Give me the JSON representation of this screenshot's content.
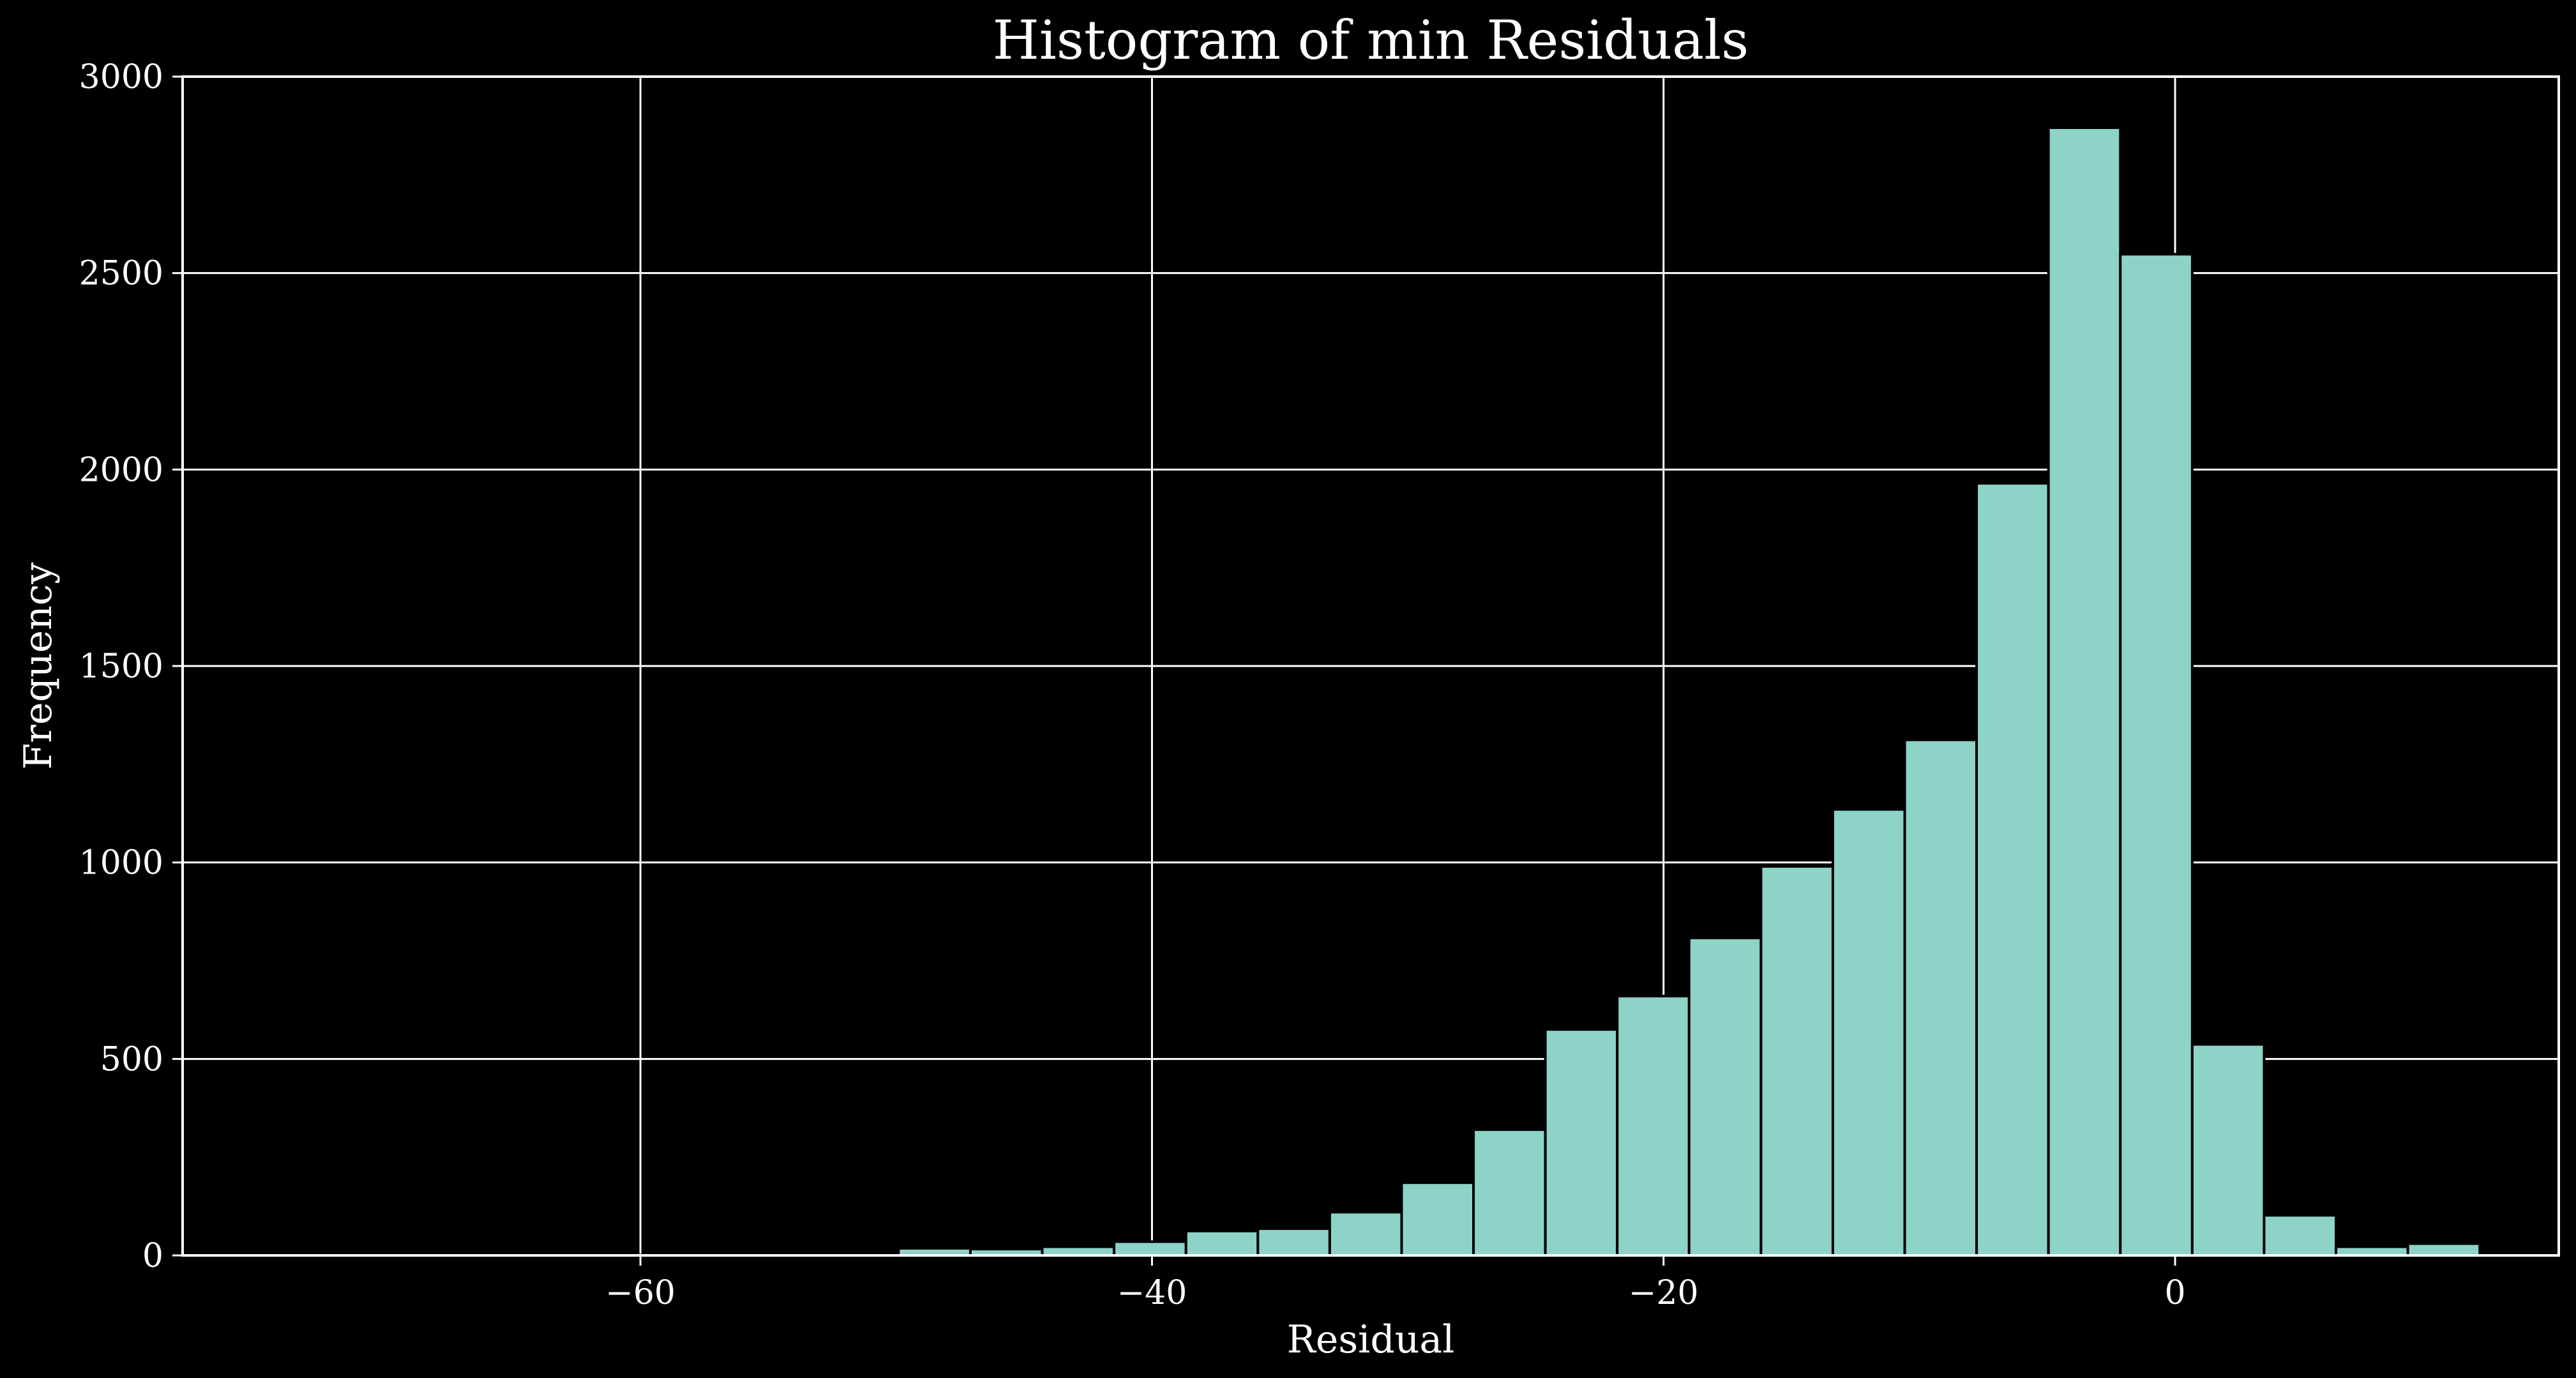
{
  "chart_data": {
    "type": "bar",
    "title": "Histogram of min Residuals",
    "xlabel": "Residual",
    "ylabel": "Frequency",
    "xlim": [
      -77.9,
      15.0
    ],
    "ylim": [
      0,
      3000
    ],
    "grid": true,
    "x_ticks": [
      {
        "value": -60,
        "label": "−60"
      },
      {
        "value": -40,
        "label": "−40"
      },
      {
        "value": -20,
        "label": "−20"
      },
      {
        "value": 0,
        "label": "0"
      }
    ],
    "y_ticks": [
      {
        "value": 0,
        "label": "0"
      },
      {
        "value": 500,
        "label": "500"
      },
      {
        "value": 1000,
        "label": "1000"
      },
      {
        "value": 1500,
        "label": "1500"
      },
      {
        "value": 2000,
        "label": "2000"
      },
      {
        "value": 2500,
        "label": "2500"
      },
      {
        "value": 3000,
        "label": "3000"
      }
    ],
    "bin_edges": [
      -75.2,
      -72.39,
      -69.58,
      -66.77,
      -63.96,
      -61.15,
      -58.34,
      -55.53,
      -52.72,
      -49.91,
      -47.1,
      -44.29,
      -41.48,
      -38.67,
      -35.86,
      -33.05,
      -30.24,
      -27.43,
      -24.62,
      -21.81,
      -19.0,
      -16.19,
      -13.38,
      -10.57,
      -7.76,
      -4.95,
      -2.14,
      0.67,
      3.48,
      6.29,
      9.1,
      11.91
    ],
    "values": [
      1,
      0,
      0,
      1,
      0,
      1,
      2,
      4,
      3,
      18,
      16,
      22,
      35,
      62,
      68,
      110,
      185,
      320,
      575,
      660,
      808,
      990,
      1135,
      1312,
      1965,
      2870,
      2548,
      537,
      102,
      22,
      30
    ],
    "colors": {
      "background": "#000000",
      "bar_fill": "#8dd3c7",
      "bar_edge": "#000000",
      "grid": "#ffffff",
      "text": "#ffffff"
    }
  }
}
